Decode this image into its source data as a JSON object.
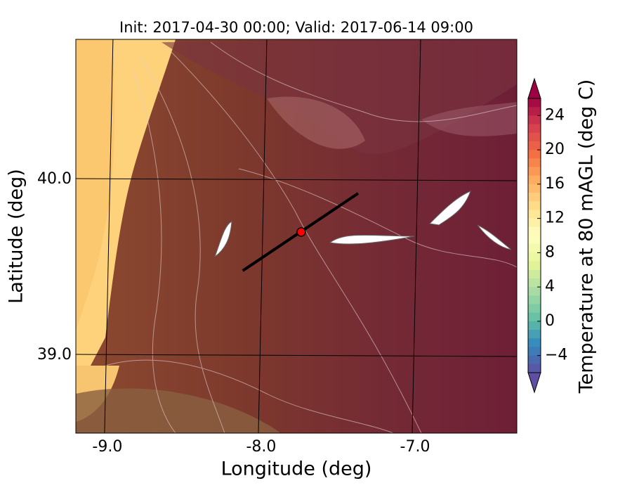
{
  "chart_data": {
    "type": "map",
    "title": "Init: 2017-04-30 00:00; Valid: 2017-06-14 09:00",
    "x_label": "Longitude (deg)",
    "y_label": "Latitude (deg)",
    "xlim": [
      -9.205,
      -6.338
    ],
    "ylim": [
      38.556,
      40.796
    ],
    "xticks": [
      {
        "value": -9,
        "label": "-9.0"
      },
      {
        "value": -8,
        "label": "-8.0"
      },
      {
        "value": -7,
        "label": "-7.0"
      }
    ],
    "yticks": [
      {
        "value": 39,
        "label": "39.0"
      },
      {
        "value": 40,
        "label": "40.0"
      }
    ],
    "grid": true,
    "transect": {
      "lon": [
        -8.12,
        -7.37
      ],
      "lat": [
        39.48,
        39.92
      ],
      "color": "#000000"
    },
    "point": {
      "lon": -7.74,
      "lat": 39.7,
      "color": "#ff0000"
    },
    "colorbar": {
      "label": "Temperature at 80 mAGL (deg C)",
      "lim": [
        -6,
        26
      ],
      "ticks": [
        {
          "value": -4,
          "label": "−4"
        },
        0,
        4,
        8,
        12,
        16,
        20,
        24
      ],
      "colors": [
        "#5e4fa2",
        "#3288bd",
        "#66c2a5",
        "#abdda4",
        "#e6f598",
        "#ffffbf",
        "#fee08b",
        "#fdae61",
        "#f46d43",
        "#d53e4f",
        "#9e0142"
      ]
    }
  }
}
